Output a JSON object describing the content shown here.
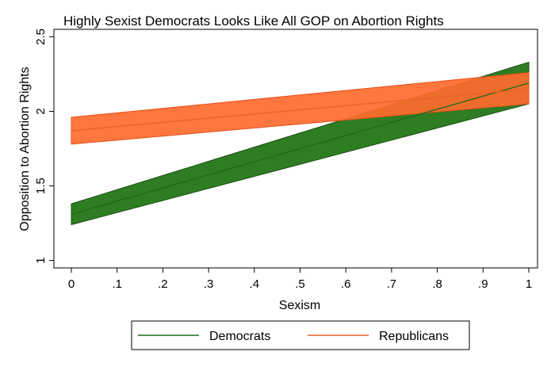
{
  "chart_data": {
    "type": "line",
    "title": "Highly Sexist Democrats Looks Like All GOP on Abortion Rights",
    "xlabel": "Sexism",
    "ylabel": "Opposition to Abortion Rights",
    "xlim": [
      0,
      1
    ],
    "ylim": [
      0.95,
      2.55
    ],
    "x_ticks": [
      0,
      0.1,
      0.2,
      0.3,
      0.4,
      0.5,
      0.6,
      0.7,
      0.8,
      0.9,
      1
    ],
    "x_tick_labels": [
      "0",
      ".1",
      ".2",
      ".3",
      ".4",
      ".5",
      ".6",
      ".7",
      ".8",
      ".9",
      "1"
    ],
    "y_ticks": [
      1,
      1.5,
      2,
      2.5
    ],
    "y_tick_labels": [
      "1",
      "1.5",
      "2",
      "2.5"
    ],
    "grid": false,
    "legend_position": "bottom",
    "series": [
      {
        "name": "Democrats",
        "x": [
          0,
          1
        ],
        "values": [
          1.31,
          2.19
        ],
        "ci_lower": [
          1.24,
          2.05
        ],
        "ci_upper": [
          1.38,
          2.33
        ],
        "line_color": "#1a6b1a",
        "band_color": "#2e7d22",
        "band_edge_color": "#1b4f14"
      },
      {
        "name": "Republicans",
        "x": [
          0,
          1
        ],
        "values": [
          1.87,
          2.15
        ],
        "ci_lower": [
          1.78,
          2.05
        ],
        "ci_upper": [
          1.96,
          2.26
        ],
        "line_color": "#e8622a",
        "band_color": "#ff6a2e",
        "band_edge_color": "#e0501a"
      }
    ]
  }
}
